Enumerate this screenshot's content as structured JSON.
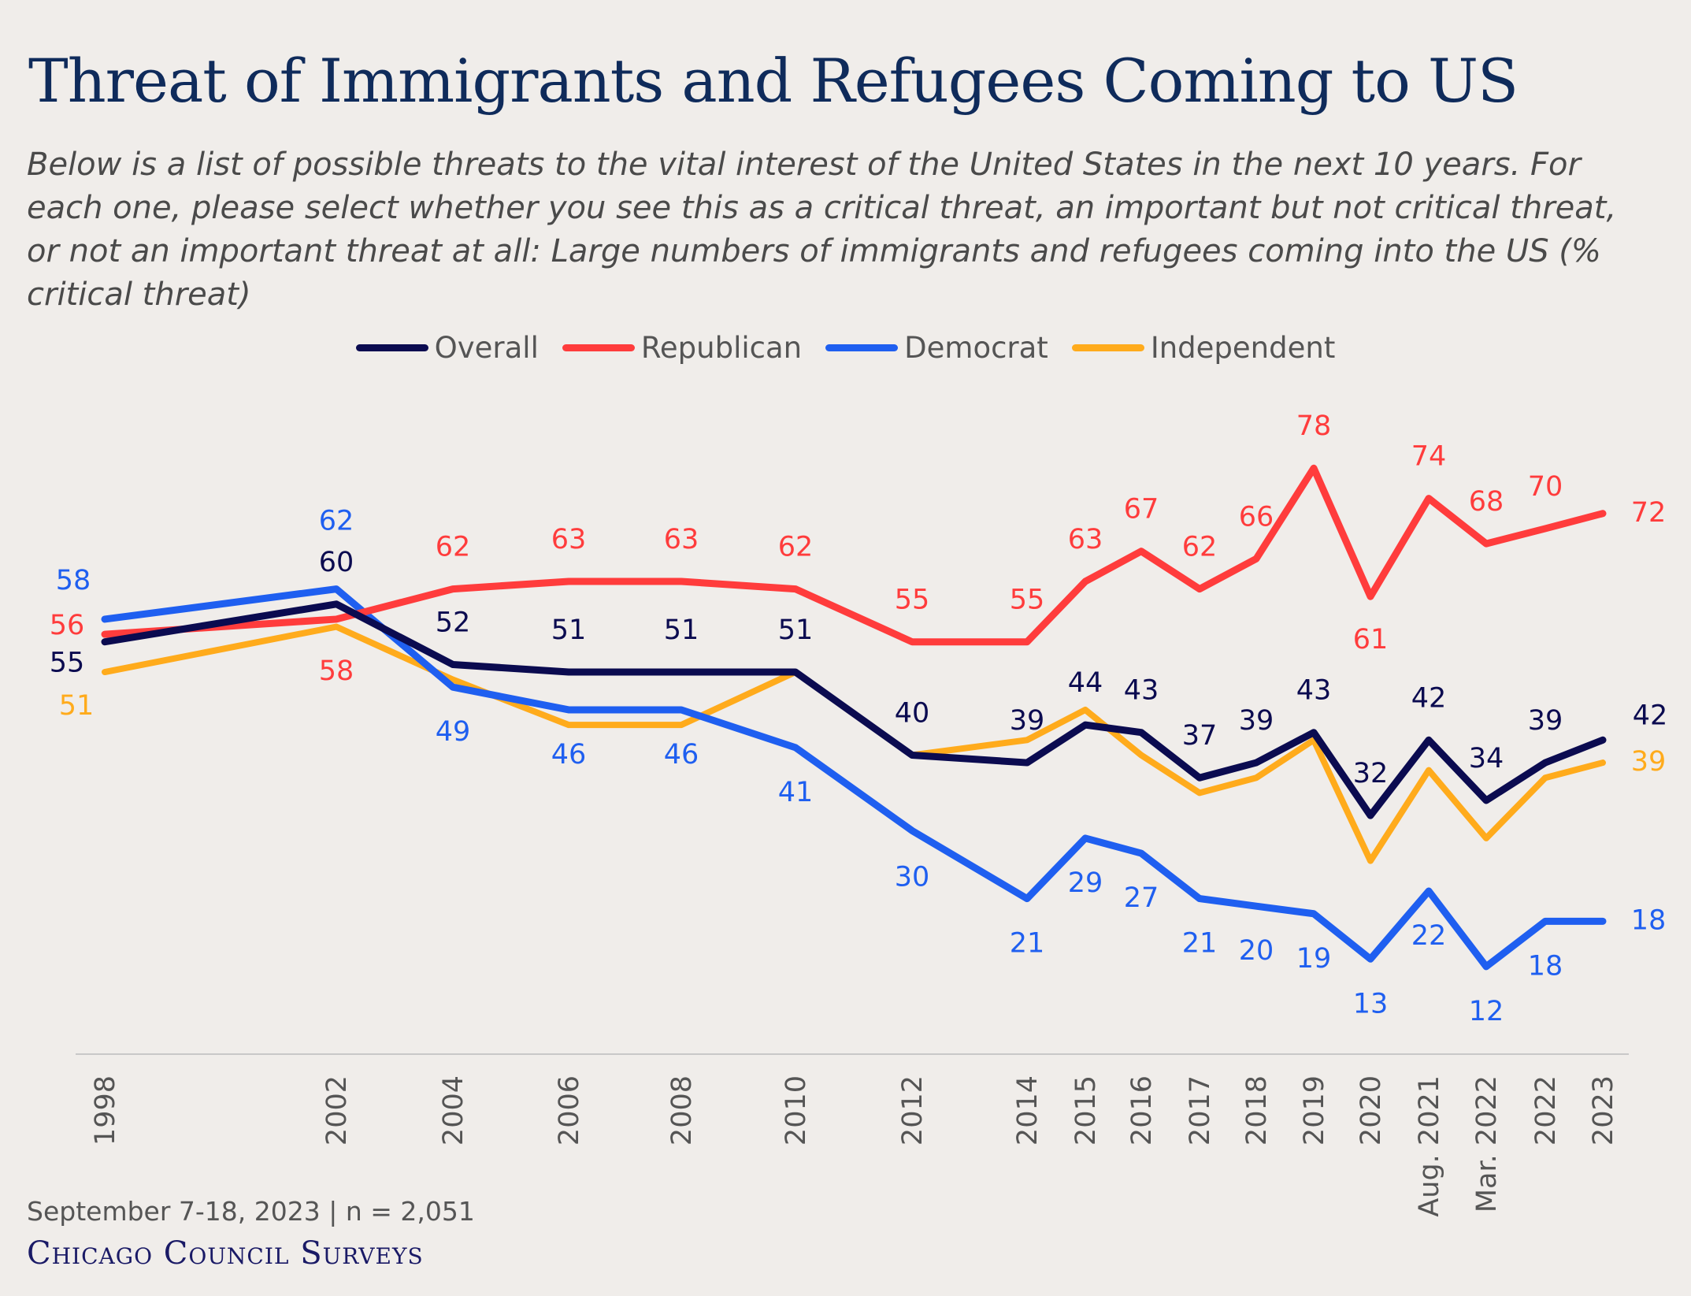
{
  "title": "Threat of Immigrants and Refugees Coming to US",
  "subtitle": "Below is a list of possible threats to the vital interest of the United States in the next 10 years. For each one, please select whether you see this as a critical threat, an important but not critical threat, or not an important threat at all: Large numbers of immigrants and refugees coming into the US (% critical threat)",
  "footer": {
    "note": "September 7-18, 2023 | n = 2,051",
    "brand": "Chicago Council Surveys"
  },
  "chart_data": {
    "type": "line",
    "title": "Threat of Immigrants and Refugees Coming to US",
    "xlabel": "",
    "ylabel": "",
    "grid": false,
    "legend_position": "top",
    "ylim": [
      0,
      85
    ],
    "categories": [
      "1998",
      "2002",
      "2004",
      "2006",
      "2008",
      "2010",
      "2012",
      "2014",
      "2015",
      "2016",
      "2017",
      "2018",
      "2019",
      "2020",
      "Aug. 2021",
      "Mar. 2022",
      "2022",
      "2023"
    ],
    "series": [
      {
        "name": "Overall",
        "color": "#0b0b50",
        "values": [
          55,
          60,
          52,
          51,
          51,
          51,
          40,
          39,
          44,
          43,
          37,
          39,
          43,
          32,
          42,
          34,
          39,
          42
        ],
        "labeled": [
          true,
          true,
          true,
          true,
          true,
          true,
          true,
          true,
          true,
          true,
          true,
          true,
          true,
          true,
          true,
          true,
          true,
          true
        ]
      },
      {
        "name": "Republican",
        "color": "#ff3c3c",
        "values": [
          56,
          58,
          62,
          63,
          63,
          62,
          55,
          55,
          63,
          67,
          62,
          66,
          78,
          61,
          74,
          68,
          70,
          72
        ],
        "labeled": [
          true,
          true,
          true,
          true,
          true,
          true,
          true,
          true,
          true,
          true,
          true,
          true,
          true,
          true,
          true,
          true,
          true,
          true
        ]
      },
      {
        "name": "Democrat",
        "color": "#1f5ff0",
        "values": [
          58,
          62,
          49,
          46,
          46,
          41,
          30,
          21,
          29,
          27,
          21,
          20,
          19,
          13,
          22,
          12,
          18,
          18
        ],
        "labeled": [
          true,
          true,
          true,
          true,
          true,
          true,
          true,
          true,
          true,
          true,
          true,
          true,
          true,
          true,
          true,
          true,
          true,
          true
        ]
      },
      {
        "name": "Independent",
        "color": "#ffab1c",
        "values": [
          51,
          57,
          50,
          44,
          44,
          51,
          40,
          42,
          46,
          40,
          35,
          37,
          42,
          26,
          38,
          29,
          37,
          39
        ],
        "labeled": [
          true,
          false,
          false,
          false,
          false,
          false,
          false,
          false,
          false,
          false,
          false,
          false,
          false,
          false,
          false,
          false,
          false,
          true
        ]
      }
    ]
  }
}
